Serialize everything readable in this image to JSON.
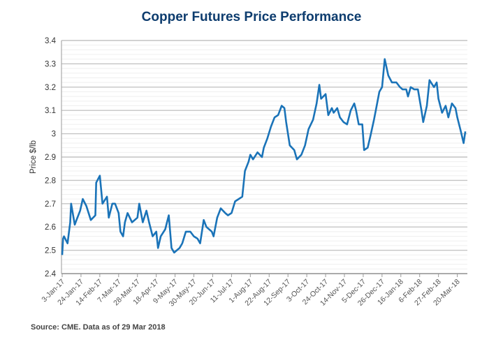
{
  "chart_data": {
    "type": "line",
    "title": "Copper Futures Price Performance",
    "ylabel": "Price $/lb",
    "xlabel": "",
    "ylim": [
      2.4,
      3.4
    ],
    "yticks": [
      "2.4",
      "2.5",
      "2.6",
      "2.7",
      "2.8",
      "2.9",
      "3",
      "3.1",
      "3.2",
      "3.3",
      "3.4"
    ],
    "xticks": [
      "3-Jan-17",
      "24-Jan-17",
      "14-Feb-17",
      "7-Mar-17",
      "28-Mar-17",
      "18-Apr-17",
      "9-May-17",
      "30-May-17",
      "20-Jun-17",
      "11-Jul-17",
      "1-Aug-17",
      "22-Aug-17",
      "12-Sep-17",
      "3-Oct-17",
      "24-Oct-17",
      "14-Nov-17",
      "5-Dec-17",
      "26-Dec-17",
      "16-Jan-18",
      "6-Feb-18",
      "27-Feb-18",
      "20-Mar-18"
    ],
    "xtick_dates": [
      "2017-01-03",
      "2017-01-24",
      "2017-02-14",
      "2017-03-07",
      "2017-03-28",
      "2017-04-18",
      "2017-05-09",
      "2017-05-30",
      "2017-06-20",
      "2017-07-11",
      "2017-08-01",
      "2017-08-22",
      "2017-09-12",
      "2017-10-03",
      "2017-10-24",
      "2017-11-14",
      "2017-12-05",
      "2017-12-26",
      "2018-01-16",
      "2018-02-06",
      "2018-02-27",
      "2018-03-20"
    ],
    "grid": true,
    "color": "#1a73b8",
    "series": [
      {
        "x": [
          "2017-01-03",
          "2017-01-04",
          "2017-01-05",
          "2017-01-09",
          "2017-01-12",
          "2017-01-13",
          "2017-01-17",
          "2017-01-19",
          "2017-01-23",
          "2017-01-26",
          "2017-01-30",
          "2017-02-04",
          "2017-02-09",
          "2017-02-10",
          "2017-02-14",
          "2017-02-17",
          "2017-02-22",
          "2017-02-24",
          "2017-02-28",
          "2017-03-03",
          "2017-03-07",
          "2017-03-09",
          "2017-03-12",
          "2017-03-14",
          "2017-03-17",
          "2017-03-22",
          "2017-03-28",
          "2017-03-30",
          "2017-04-03",
          "2017-04-07",
          "2017-04-10",
          "2017-04-14",
          "2017-04-18",
          "2017-04-20",
          "2017-04-23",
          "2017-04-28",
          "2017-05-02",
          "2017-05-05",
          "2017-05-08",
          "2017-05-14",
          "2017-05-17",
          "2017-05-21",
          "2017-05-26",
          "2017-05-30",
          "2017-06-03",
          "2017-06-06",
          "2017-06-10",
          "2017-06-13",
          "2017-06-19",
          "2017-06-21",
          "2017-06-25",
          "2017-06-29",
          "2017-07-04",
          "2017-07-07",
          "2017-07-11",
          "2017-07-15",
          "2017-07-19",
          "2017-07-23",
          "2017-07-26",
          "2017-07-30",
          "2017-08-01",
          "2017-08-04",
          "2017-08-09",
          "2017-08-14",
          "2017-08-16",
          "2017-08-20",
          "2017-08-24",
          "2017-08-28",
          "2017-09-01",
          "2017-09-05",
          "2017-09-08",
          "2017-09-10",
          "2017-09-14",
          "2017-09-19",
          "2017-09-22",
          "2017-09-27",
          "2017-10-01",
          "2017-10-05",
          "2017-10-10",
          "2017-10-14",
          "2017-10-17",
          "2017-10-19",
          "2017-10-24",
          "2017-10-27",
          "2017-10-31",
          "2017-11-02",
          "2017-11-06",
          "2017-11-09",
          "2017-11-13",
          "2017-11-17",
          "2017-11-21",
          "2017-11-25",
          "2017-11-27",
          "2017-11-30",
          "2017-12-04",
          "2017-12-06",
          "2017-12-10",
          "2017-12-13",
          "2017-12-17",
          "2017-12-19",
          "2017-12-23",
          "2017-12-26",
          "2017-12-29",
          "2018-01-02",
          "2018-01-06",
          "2018-01-11",
          "2018-01-15",
          "2018-01-18",
          "2018-01-22",
          "2018-01-24",
          "2018-01-27",
          "2018-01-31",
          "2018-02-04",
          "2018-02-08",
          "2018-02-10",
          "2018-02-14",
          "2018-02-17",
          "2018-02-22",
          "2018-02-25",
          "2018-02-27",
          "2018-03-03",
          "2018-03-07",
          "2018-03-10",
          "2018-03-14",
          "2018-03-18",
          "2018-03-20",
          "2018-03-24",
          "2018-03-27",
          "2018-03-29"
        ],
        "y": [
          2.48,
          2.55,
          2.56,
          2.53,
          2.62,
          2.7,
          2.61,
          2.63,
          2.67,
          2.72,
          2.69,
          2.63,
          2.65,
          2.79,
          2.82,
          2.7,
          2.73,
          2.64,
          2.7,
          2.7,
          2.66,
          2.58,
          2.56,
          2.62,
          2.66,
          2.62,
          2.64,
          2.7,
          2.62,
          2.67,
          2.62,
          2.56,
          2.58,
          2.51,
          2.56,
          2.59,
          2.65,
          2.51,
          2.49,
          2.51,
          2.53,
          2.58,
          2.58,
          2.56,
          2.55,
          2.53,
          2.63,
          2.6,
          2.58,
          2.56,
          2.64,
          2.68,
          2.66,
          2.65,
          2.66,
          2.71,
          2.72,
          2.73,
          2.84,
          2.88,
          2.91,
          2.89,
          2.92,
          2.9,
          2.94,
          2.98,
          3.03,
          3.07,
          3.08,
          3.12,
          3.11,
          3.05,
          2.95,
          2.93,
          2.89,
          2.91,
          2.95,
          3.02,
          3.06,
          3.13,
          3.21,
          3.15,
          3.17,
          3.08,
          3.11,
          3.09,
          3.11,
          3.07,
          3.05,
          3.04,
          3.1,
          3.13,
          3.1,
          3.04,
          3.04,
          2.93,
          2.94,
          2.99,
          3.06,
          3.1,
          3.18,
          3.2,
          3.32,
          3.25,
          3.22,
          3.22,
          3.2,
          3.19,
          3.19,
          3.16,
          3.2,
          3.19,
          3.19,
          3.1,
          3.05,
          3.12,
          3.23,
          3.2,
          3.22,
          3.15,
          3.09,
          3.12,
          3.07,
          3.13,
          3.11,
          3.07,
          3.01,
          2.96,
          3.01
        ]
      }
    ]
  },
  "footer": {
    "source": "Source: CME. Data as of 29 Mar 2018"
  }
}
